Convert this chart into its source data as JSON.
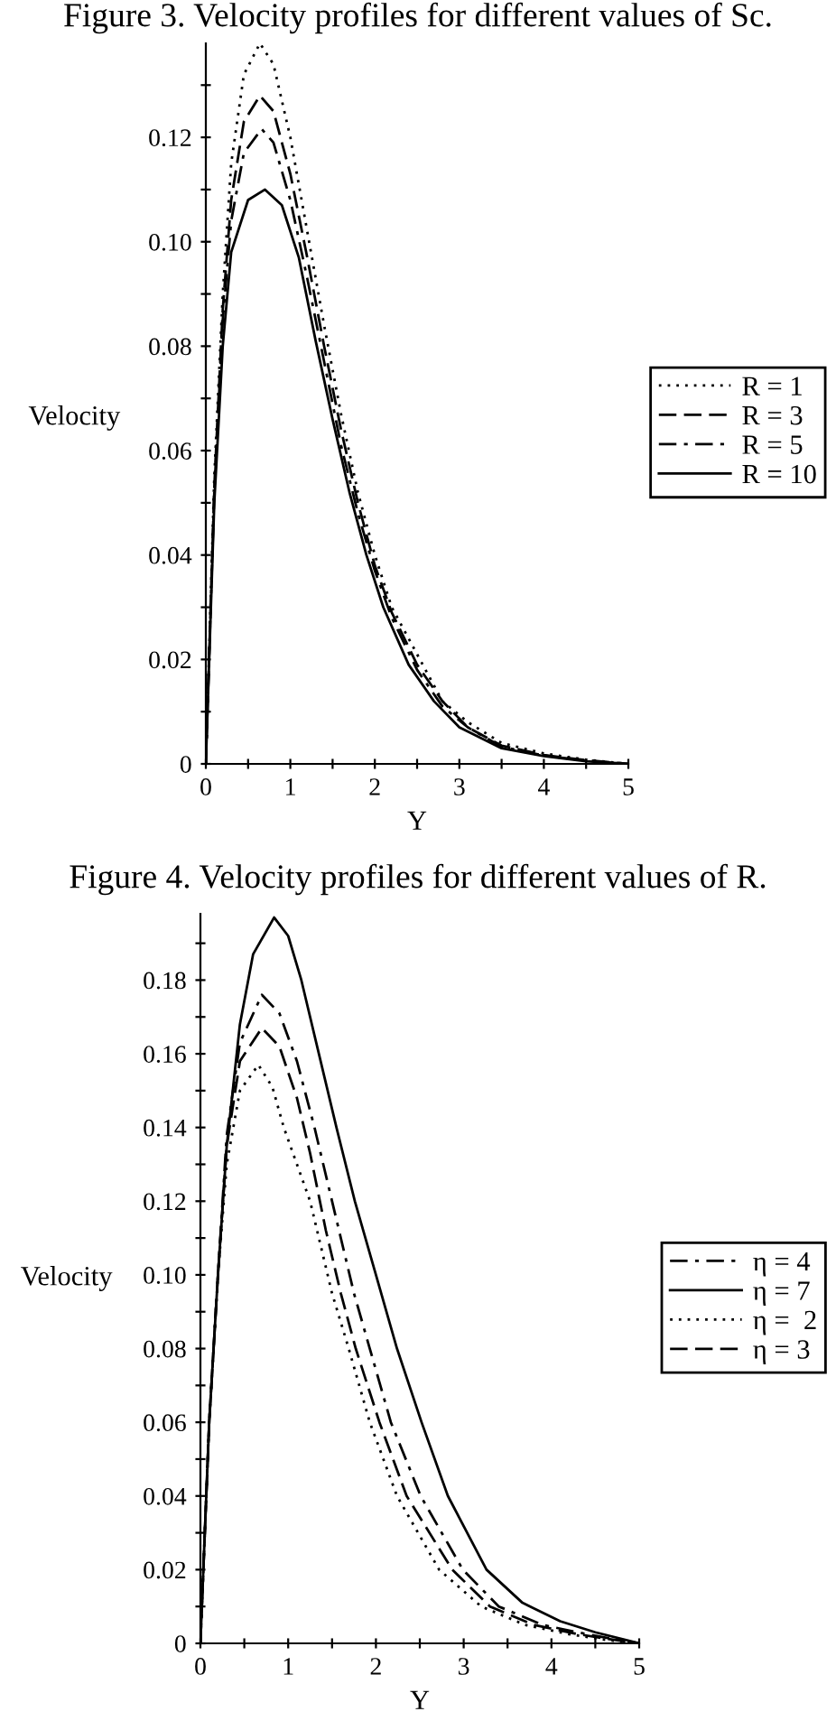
{
  "chart_data": [
    {
      "type": "line",
      "title": "Figure 3. Velocity profiles for different values of Sc.",
      "xlabel": "Y",
      "ylabel": "Velocity",
      "xlim": [
        0,
        5
      ],
      "ylim": [
        0,
        0.138
      ],
      "xticks": [
        0,
        {
          "value": 0.5,
          "label": null
        },
        1,
        {
          "value": 1.5,
          "label": null
        },
        2,
        {
          "value": 2.5,
          "label": null
        },
        3,
        {
          "value": 3.5,
          "label": null
        },
        4,
        {
          "value": 4.5,
          "label": null
        },
        5
      ],
      "yticks": [
        0,
        {
          "value": 0.01,
          "label": null
        },
        0.02,
        {
          "value": 0.03,
          "label": null
        },
        0.04,
        {
          "value": 0.05,
          "label": null
        },
        0.06,
        {
          "value": 0.07,
          "label": null
        },
        0.08,
        {
          "value": 0.09,
          "label": null
        },
        {
          "value": 0.1,
          "label": "0.10"
        },
        {
          "value": 0.11,
          "label": null
        },
        0.12,
        {
          "value": 0.13,
          "label": null
        }
      ],
      "grid": false,
      "legend": "right",
      "series": [
        {
          "name": "R = 1",
          "color": "#000000",
          "line_style": "dotted",
          "x": [
            0,
            0.1,
            0.2,
            0.3,
            0.45,
            0.64,
            0.8,
            1.0,
            1.2,
            1.4,
            1.6,
            1.8,
            2.0,
            2.2,
            2.5,
            2.8,
            3.1,
            3.5,
            4.0,
            4.5,
            5.0
          ],
          "values": [
            0,
            0.055,
            0.09,
            0.115,
            0.132,
            0.138,
            0.134,
            0.12,
            0.102,
            0.084,
            0.067,
            0.052,
            0.04,
            0.03,
            0.021,
            0.012,
            0.008,
            0.004,
            0.002,
            0.0008,
            0
          ]
        },
        {
          "name": "R = 3",
          "color": "#000000",
          "line_style": "dashed",
          "x": [
            0,
            0.1,
            0.2,
            0.3,
            0.45,
            0.64,
            0.8,
            1.0,
            1.2,
            1.4,
            1.6,
            1.8,
            2.0,
            2.2,
            2.5,
            2.8,
            3.1,
            3.5,
            4.0,
            4.5,
            5.0
          ],
          "values": [
            0,
            0.053,
            0.087,
            0.108,
            0.123,
            0.128,
            0.125,
            0.113,
            0.097,
            0.08,
            0.064,
            0.05,
            0.038,
            0.029,
            0.019,
            0.012,
            0.007,
            0.0035,
            0.0017,
            0.0007,
            0
          ]
        },
        {
          "name": "R = 5",
          "color": "#000000",
          "line_style": "dashdot",
          "x": [
            0,
            0.1,
            0.2,
            0.3,
            0.45,
            0.66,
            0.8,
            1.0,
            1.2,
            1.4,
            1.6,
            1.8,
            2.0,
            2.2,
            2.5,
            2.8,
            3.1,
            3.5,
            4.0,
            4.5,
            5.0
          ],
          "values": [
            0,
            0.052,
            0.085,
            0.104,
            0.117,
            0.1216,
            0.119,
            0.108,
            0.093,
            0.077,
            0.061,
            0.048,
            0.037,
            0.028,
            0.018,
            0.011,
            0.007,
            0.0033,
            0.0016,
            0.0006,
            0
          ]
        },
        {
          "name": "R = 10",
          "color": "#000000",
          "line_style": "solid",
          "x": [
            0,
            0.1,
            0.2,
            0.3,
            0.5,
            0.7,
            0.9,
            1.1,
            1.3,
            1.5,
            1.7,
            1.9,
            2.1,
            2.4,
            2.7,
            3.0,
            3.5,
            4.0,
            4.5,
            5.0
          ],
          "values": [
            0,
            0.05,
            0.08,
            0.098,
            0.108,
            0.11,
            0.107,
            0.097,
            0.081,
            0.066,
            0.052,
            0.04,
            0.03,
            0.019,
            0.012,
            0.007,
            0.003,
            0.0015,
            0.0005,
            0
          ]
        }
      ]
    },
    {
      "type": "line",
      "title": "Figure 4. Velocity profiles for different values of R.",
      "xlabel": "Y",
      "ylabel": "Velocity",
      "xlim": [
        0,
        5
      ],
      "ylim": [
        0,
        0.198
      ],
      "xticks": [
        0,
        {
          "value": 0.5,
          "label": null
        },
        1,
        {
          "value": 1.5,
          "label": null
        },
        2,
        {
          "value": 2.5,
          "label": null
        },
        3,
        {
          "value": 3.5,
          "label": null
        },
        4,
        {
          "value": 4.5,
          "label": null
        },
        5
      ],
      "yticks": [
        0,
        {
          "value": 0.01,
          "label": null
        },
        0.02,
        {
          "value": 0.03,
          "label": null
        },
        0.04,
        {
          "value": 0.05,
          "label": null
        },
        0.06,
        {
          "value": 0.07,
          "label": null
        },
        0.08,
        {
          "value": 0.09,
          "label": null
        },
        {
          "value": 0.1,
          "label": "0.10"
        },
        {
          "value": 0.11,
          "label": null
        },
        0.12,
        {
          "value": 0.13,
          "label": null
        },
        0.14,
        {
          "value": 0.15,
          "label": null
        },
        0.16,
        {
          "value": 0.17,
          "label": null
        },
        0.18,
        {
          "value": 0.19,
          "label": null
        }
      ],
      "grid": false,
      "legend": "right",
      "series": [
        {
          "name": "η = 4",
          "color": "#000000",
          "line_style": "dashdot",
          "x": [
            0,
            0.1,
            0.2,
            0.3,
            0.45,
            0.7,
            0.9,
            1.1,
            1.3,
            1.58,
            1.75,
            1.93,
            2.17,
            2.51,
            2.99,
            3.4,
            3.9,
            4.4,
            4.75,
            5.0
          ],
          "values": [
            0,
            0.06,
            0.1,
            0.138,
            0.163,
            0.176,
            0.171,
            0.158,
            0.14,
            0.112,
            0.095,
            0.08,
            0.06,
            0.04,
            0.02,
            0.01,
            0.005,
            0.0025,
            0.001,
            0
          ]
        },
        {
          "name": "η = 7",
          "color": "#000000",
          "line_style": "solid",
          "x": [
            0,
            0.1,
            0.2,
            0.3,
            0.45,
            0.6,
            0.84,
            1.0,
            1.15,
            1.35,
            1.55,
            1.76,
            2.0,
            2.24,
            2.52,
            2.82,
            3.26,
            3.67,
            4.1,
            4.5,
            5.0
          ],
          "values": [
            0,
            0.06,
            0.1,
            0.135,
            0.168,
            0.187,
            0.197,
            0.192,
            0.18,
            0.16,
            0.14,
            0.12,
            0.1,
            0.08,
            0.06,
            0.04,
            0.02,
            0.011,
            0.006,
            0.003,
            0
          ]
        },
        {
          "name": "η =  2",
          "color": "#000000",
          "line_style": "dotted",
          "x": [
            0,
            0.1,
            0.2,
            0.3,
            0.45,
            0.66,
            0.82,
            0.95,
            1.1,
            1.25,
            1.5,
            1.69,
            1.93,
            2.24,
            2.72,
            3.2,
            3.7,
            4.2,
            4.6,
            5.0
          ],
          "values": [
            0,
            0.06,
            0.1,
            0.13,
            0.15,
            0.157,
            0.151,
            0.14,
            0.13,
            0.12,
            0.095,
            0.08,
            0.06,
            0.04,
            0.02,
            0.01,
            0.005,
            0.0025,
            0.001,
            0
          ]
        },
        {
          "name": "η = 3",
          "color": "#000000",
          "line_style": "dashed",
          "x": [
            0,
            0.1,
            0.2,
            0.3,
            0.45,
            0.7,
            0.9,
            1.1,
            1.25,
            1.43,
            1.6,
            1.77,
            2.04,
            2.35,
            2.87,
            3.3,
            3.8,
            4.3,
            4.7,
            5.0
          ],
          "values": [
            0,
            0.06,
            0.1,
            0.135,
            0.158,
            0.167,
            0.162,
            0.148,
            0.133,
            0.112,
            0.095,
            0.08,
            0.06,
            0.04,
            0.02,
            0.01,
            0.005,
            0.0025,
            0.001,
            0
          ]
        }
      ]
    }
  ]
}
